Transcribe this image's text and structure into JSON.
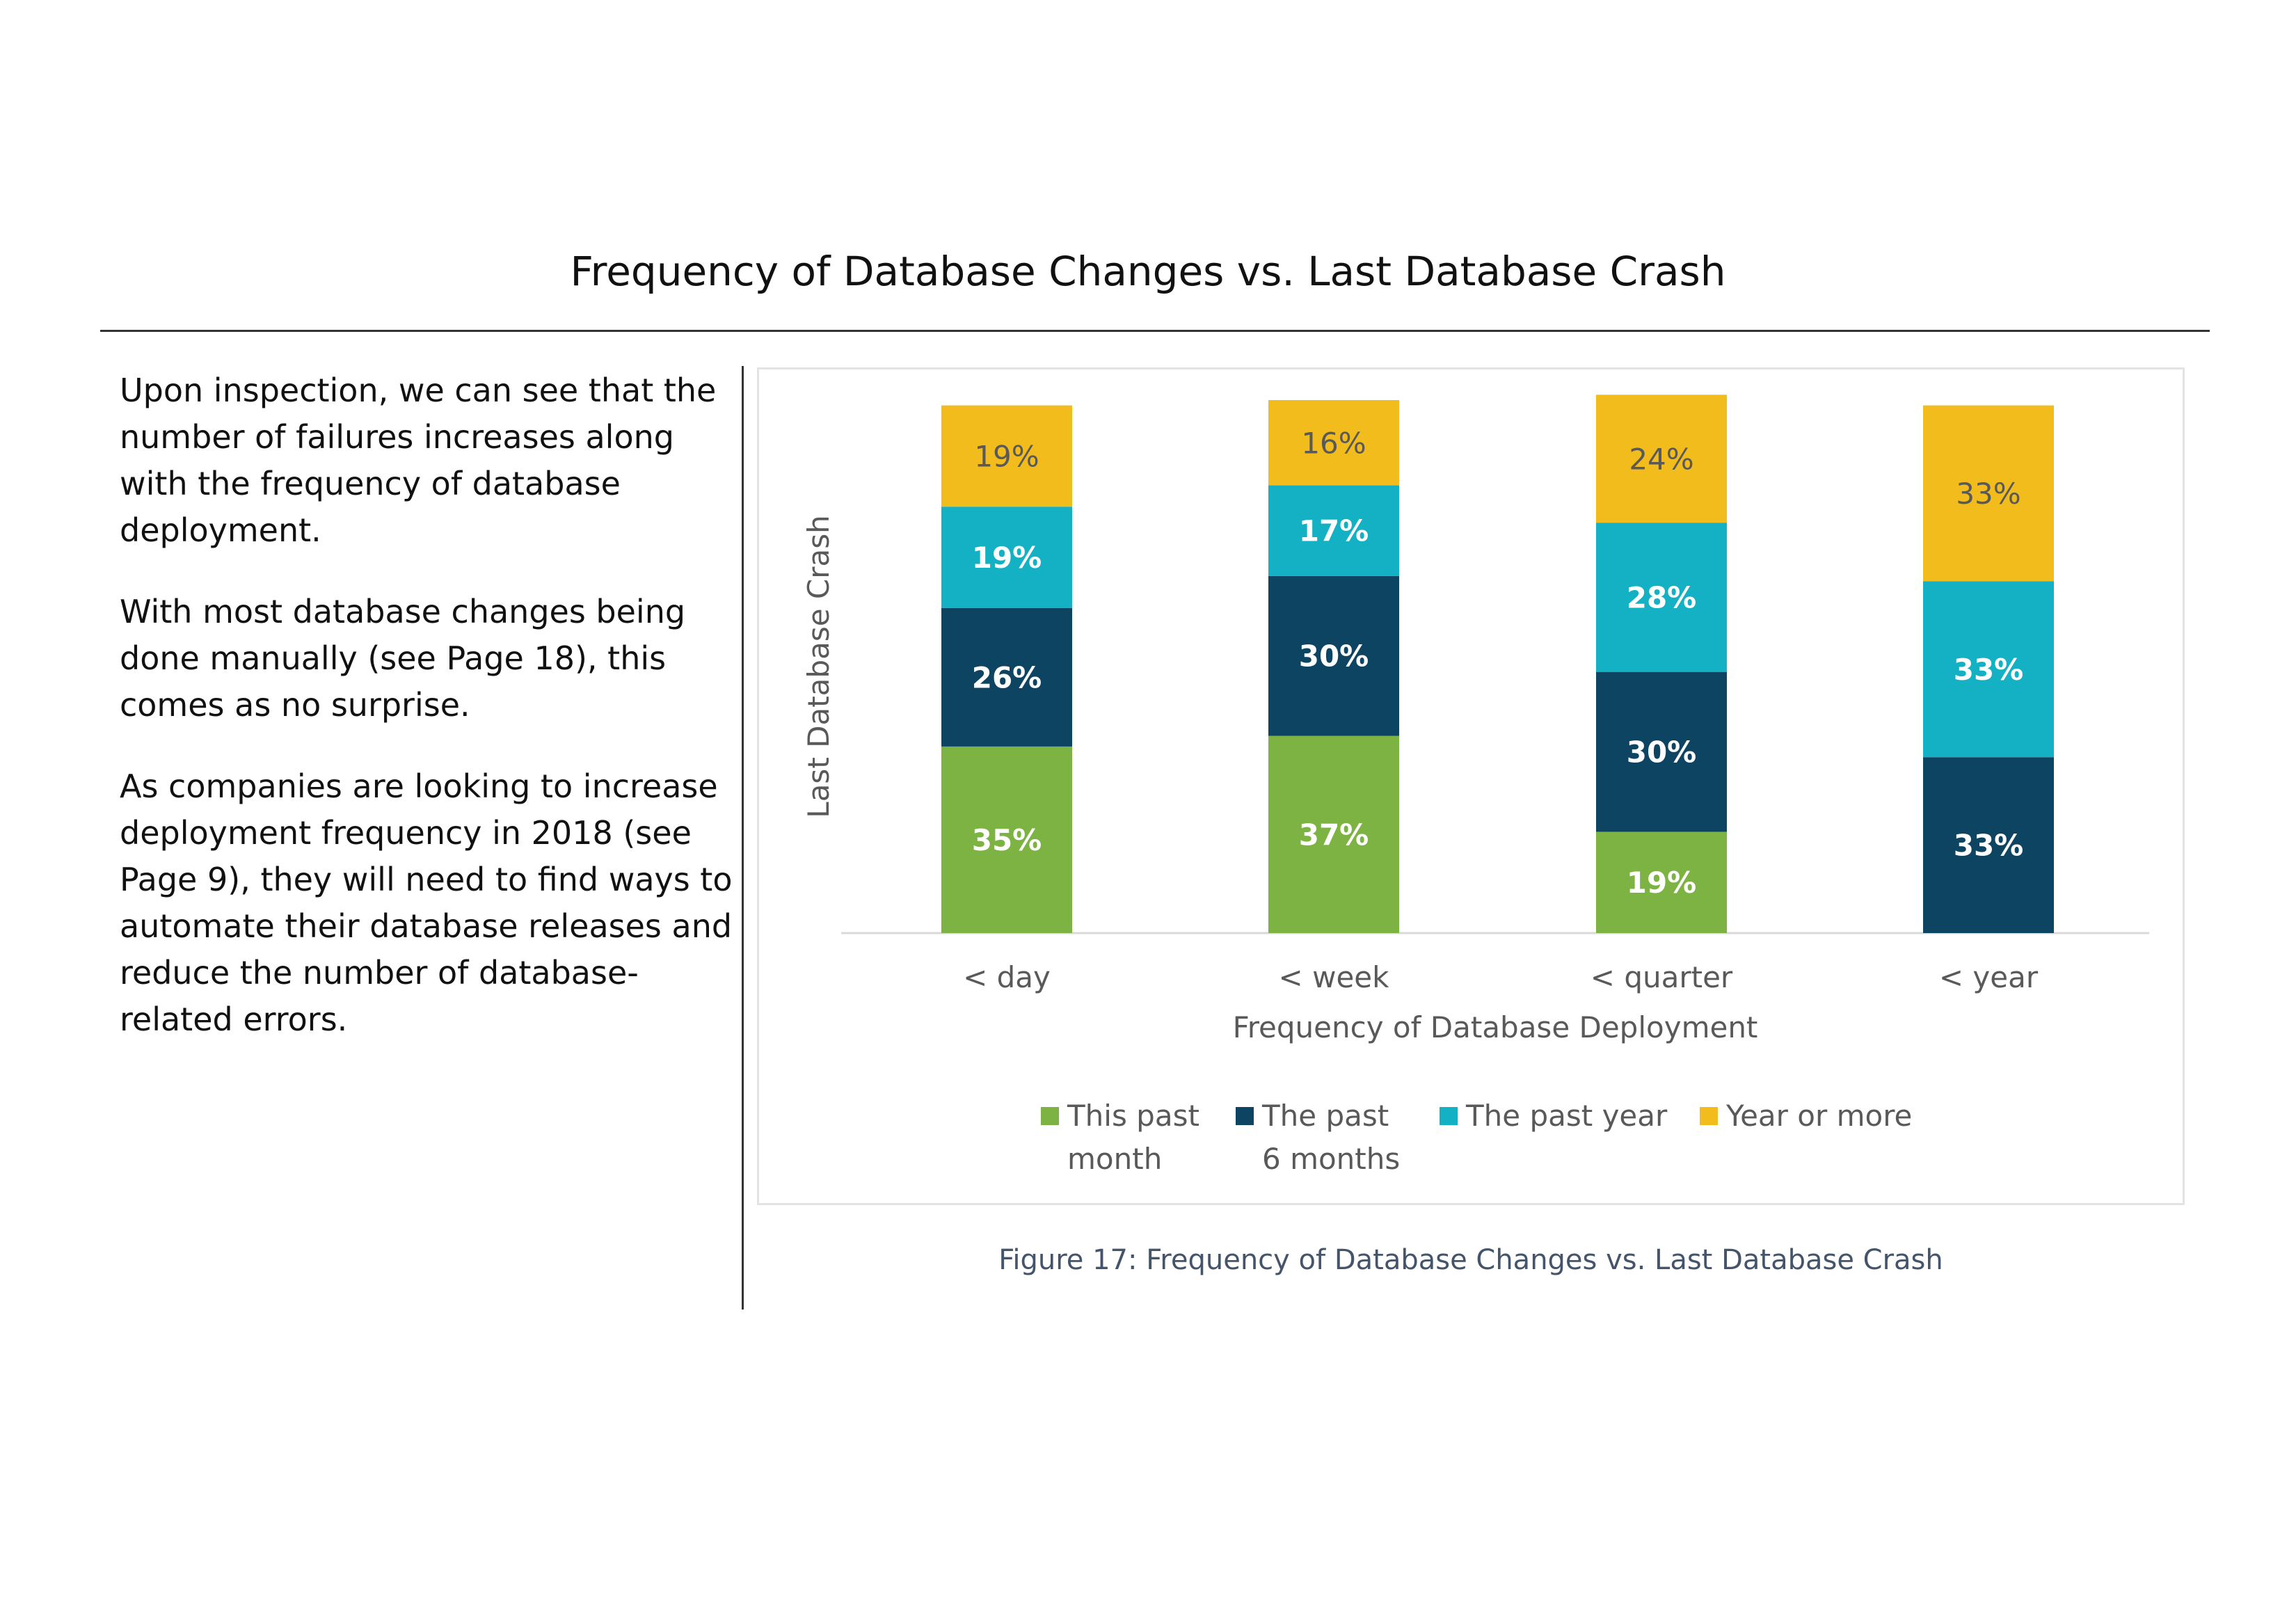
{
  "page": {
    "title": "Frequency of Database Changes vs. Last Database Crash",
    "paragraphs": [
      "Upon inspection, we can see that the number of failures increases along with the frequency of database deployment.",
      "With most database changes being done manually (see Page 18), this comes as no surprise.",
      "As companies are looking to increase deployment frequency in 2018 (see Page 9), they will need to find ways to automate their database releases and reduce the number of database-related errors."
    ],
    "caption": "Figure 17: Frequency of Database Changes vs. Last Database Crash"
  },
  "chart_data": {
    "type": "bar",
    "stacked": true,
    "title": "",
    "xlabel": "Frequency of Database Deployment",
    "ylabel": "Last Database Crash",
    "categories": [
      "< day",
      "< week",
      "< quarter",
      "< year"
    ],
    "series": [
      {
        "name": "This past month",
        "legend_lines": [
          "This past",
          "month"
        ],
        "color": "#7cb342",
        "label_color": "#ffffff",
        "values": [
          35,
          37,
          19,
          0
        ]
      },
      {
        "name": "The past 6 months",
        "legend_lines": [
          "The past",
          "6 months"
        ],
        "color": "#0d4461",
        "label_color": "#ffffff",
        "values": [
          26,
          30,
          30,
          33
        ]
      },
      {
        "name": "The past year",
        "legend_lines": [
          "The past year"
        ],
        "color": "#13b1c3",
        "label_color": "#ffffff",
        "values": [
          19,
          17,
          28,
          33
        ]
      },
      {
        "name": "Year or more",
        "legend_lines": [
          "Year or more"
        ],
        "color": "#f2bc1d",
        "label_color": "#595959",
        "values": [
          19,
          16,
          24,
          33
        ]
      }
    ],
    "value_suffix": "%",
    "ylim": [
      0,
      100
    ],
    "grid": false,
    "legend_position": "bottom"
  }
}
